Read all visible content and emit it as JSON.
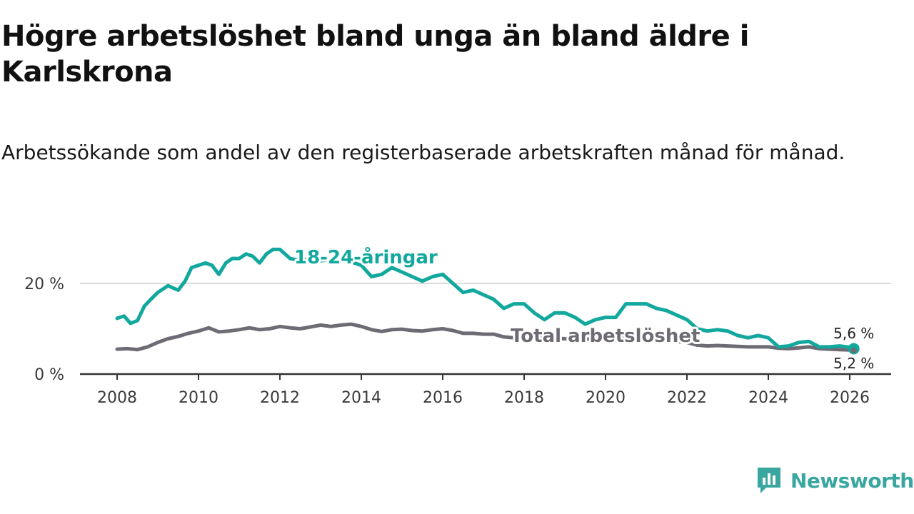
{
  "header": {
    "title": "Högre arbetslöshet bland unga än bland äldre i Karlskrona",
    "subtitle": "Arbetssökande som andel av den registerbaserade arbetskraften månad för månad."
  },
  "brand": {
    "name": "Newsworthy",
    "icon": "newsworthy-logo-icon"
  },
  "colors": {
    "youth": "#13a89e",
    "total": "#6e6b74",
    "grid": "#d9d9d9",
    "axis": "#333333",
    "brand": "#3aa6a0"
  },
  "chart_data": {
    "type": "line",
    "title": "Högre arbetslöshet bland unga än bland äldre i Karlskrona",
    "subtitle": "Arbetssökande som andel av den registerbaserade arbetskraften månad för månad.",
    "xlabel": "",
    "ylabel": "",
    "xlim": [
      2007.5,
      2027.0
    ],
    "ylim": [
      0,
      28
    ],
    "x_ticks": [
      2008,
      2010,
      2012,
      2014,
      2016,
      2018,
      2020,
      2022,
      2024,
      2026
    ],
    "y_ticks": [
      0,
      20
    ],
    "y_tick_labels": [
      "0 %",
      "20 %"
    ],
    "grid": true,
    "series": [
      {
        "name": "18-24-åringar",
        "label": "18-24-åringar",
        "color": "#13a89e",
        "points": [
          [
            2008.0,
            12.3
          ],
          [
            2008.17,
            12.8
          ],
          [
            2008.33,
            11.2
          ],
          [
            2008.5,
            11.8
          ],
          [
            2008.67,
            15.0
          ],
          [
            2008.83,
            16.5
          ],
          [
            2009.0,
            18.0
          ],
          [
            2009.25,
            19.5
          ],
          [
            2009.5,
            18.5
          ],
          [
            2009.67,
            20.5
          ],
          [
            2009.83,
            23.5
          ],
          [
            2010.0,
            24.0
          ],
          [
            2010.17,
            24.5
          ],
          [
            2010.33,
            24.0
          ],
          [
            2010.5,
            22.0
          ],
          [
            2010.67,
            24.5
          ],
          [
            2010.83,
            25.5
          ],
          [
            2011.0,
            25.5
          ],
          [
            2011.17,
            26.5
          ],
          [
            2011.33,
            26.0
          ],
          [
            2011.5,
            24.5
          ],
          [
            2011.67,
            26.5
          ],
          [
            2011.83,
            27.5
          ],
          [
            2012.0,
            27.5
          ],
          [
            2012.25,
            25.5
          ],
          [
            2012.5,
            25.0
          ],
          [
            2012.75,
            25.5
          ],
          [
            2013.0,
            25.0
          ],
          [
            2013.5,
            25.5
          ],
          [
            2014.0,
            24.0
          ],
          [
            2014.25,
            21.5
          ],
          [
            2014.5,
            22.0
          ],
          [
            2014.75,
            23.5
          ],
          [
            2015.0,
            22.5
          ],
          [
            2015.25,
            21.5
          ],
          [
            2015.5,
            20.5
          ],
          [
            2015.75,
            21.5
          ],
          [
            2016.0,
            22.0
          ],
          [
            2016.25,
            20.0
          ],
          [
            2016.5,
            18.0
          ],
          [
            2016.75,
            18.5
          ],
          [
            2017.0,
            17.5
          ],
          [
            2017.25,
            16.5
          ],
          [
            2017.5,
            14.5
          ],
          [
            2017.75,
            15.5
          ],
          [
            2018.0,
            15.5
          ],
          [
            2018.25,
            13.5
          ],
          [
            2018.5,
            12.0
          ],
          [
            2018.75,
            13.5
          ],
          [
            2019.0,
            13.5
          ],
          [
            2019.25,
            12.5
          ],
          [
            2019.5,
            11.0
          ],
          [
            2019.75,
            12.0
          ],
          [
            2020.0,
            12.5
          ],
          [
            2020.25,
            12.5
          ],
          [
            2020.5,
            15.5
          ],
          [
            2020.75,
            15.5
          ],
          [
            2021.0,
            15.5
          ],
          [
            2021.25,
            14.5
          ],
          [
            2021.5,
            14.0
          ],
          [
            2021.75,
            13.0
          ],
          [
            2022.0,
            12.0
          ],
          [
            2022.25,
            10.0
          ],
          [
            2022.5,
            9.5
          ],
          [
            2022.75,
            9.8
          ],
          [
            2023.0,
            9.5
          ],
          [
            2023.25,
            8.5
          ],
          [
            2023.5,
            8.0
          ],
          [
            2023.75,
            8.5
          ],
          [
            2024.0,
            8.0
          ],
          [
            2024.25,
            6.0
          ],
          [
            2024.5,
            6.2
          ],
          [
            2024.75,
            7.0
          ],
          [
            2025.0,
            7.2
          ],
          [
            2025.25,
            6.0
          ],
          [
            2025.5,
            6.0
          ],
          [
            2025.75,
            6.2
          ],
          [
            2026.0,
            5.9
          ],
          [
            2026.1,
            5.6
          ]
        ],
        "end_value": 5.6,
        "end_label": "5,6 %"
      },
      {
        "name": "Total arbetslöshet",
        "label": "Total arbetslöshet",
        "color": "#6e6b74",
        "points": [
          [
            2008.0,
            5.5
          ],
          [
            2008.25,
            5.6
          ],
          [
            2008.5,
            5.4
          ],
          [
            2008.75,
            6.0
          ],
          [
            2009.0,
            7.0
          ],
          [
            2009.25,
            7.8
          ],
          [
            2009.5,
            8.3
          ],
          [
            2009.75,
            9.0
          ],
          [
            2010.0,
            9.5
          ],
          [
            2010.25,
            10.2
          ],
          [
            2010.5,
            9.3
          ],
          [
            2010.75,
            9.5
          ],
          [
            2011.0,
            9.8
          ],
          [
            2011.25,
            10.2
          ],
          [
            2011.5,
            9.8
          ],
          [
            2011.75,
            10.0
          ],
          [
            2012.0,
            10.5
          ],
          [
            2012.25,
            10.2
          ],
          [
            2012.5,
            10.0
          ],
          [
            2012.75,
            10.4
          ],
          [
            2013.0,
            10.8
          ],
          [
            2013.25,
            10.5
          ],
          [
            2013.5,
            10.8
          ],
          [
            2013.75,
            11.0
          ],
          [
            2014.0,
            10.5
          ],
          [
            2014.25,
            9.8
          ],
          [
            2014.5,
            9.4
          ],
          [
            2014.75,
            9.8
          ],
          [
            2015.0,
            9.9
          ],
          [
            2015.25,
            9.6
          ],
          [
            2015.5,
            9.5
          ],
          [
            2015.75,
            9.8
          ],
          [
            2016.0,
            10.0
          ],
          [
            2016.25,
            9.6
          ],
          [
            2016.5,
            9.0
          ],
          [
            2016.75,
            9.0
          ],
          [
            2017.0,
            8.8
          ],
          [
            2017.25,
            8.8
          ],
          [
            2017.5,
            8.2
          ],
          [
            2017.75,
            8.0
          ],
          [
            2018.0,
            8.2
          ],
          [
            2018.5,
            8.0
          ],
          [
            2019.0,
            7.8
          ],
          [
            2019.5,
            7.6
          ],
          [
            2020.0,
            8.4
          ],
          [
            2020.5,
            8.4
          ],
          [
            2021.0,
            7.8
          ],
          [
            2021.5,
            7.4
          ],
          [
            2022.0,
            7.0
          ],
          [
            2022.25,
            6.4
          ],
          [
            2022.5,
            6.2
          ],
          [
            2022.75,
            6.3
          ],
          [
            2023.0,
            6.2
          ],
          [
            2023.5,
            6.0
          ],
          [
            2024.0,
            6.0
          ],
          [
            2024.25,
            5.7
          ],
          [
            2024.5,
            5.6
          ],
          [
            2024.75,
            5.8
          ],
          [
            2025.0,
            6.0
          ],
          [
            2025.25,
            5.6
          ],
          [
            2025.5,
            5.5
          ],
          [
            2025.75,
            5.4
          ],
          [
            2026.0,
            5.3
          ],
          [
            2026.1,
            5.2
          ]
        ],
        "end_value": 5.2,
        "end_label": "5,2 %"
      }
    ]
  }
}
